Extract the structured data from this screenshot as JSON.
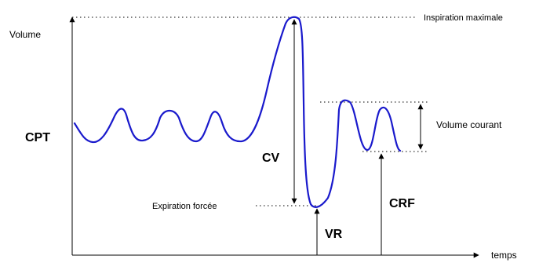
{
  "labels": {
    "volume": "Volume",
    "temps": "temps",
    "inspiration_maximale": "Inspiration maximale",
    "expiration_forcee": "Expiration forcée",
    "volume_courant": "Volume courant",
    "cpt": "CPT",
    "cv": "CV",
    "vr": "VR",
    "crf": "CRF"
  },
  "colors": {
    "curve": "#1a1acc",
    "lines": "#000000"
  },
  "icons": {
    "arrow": "arrowhead"
  }
}
